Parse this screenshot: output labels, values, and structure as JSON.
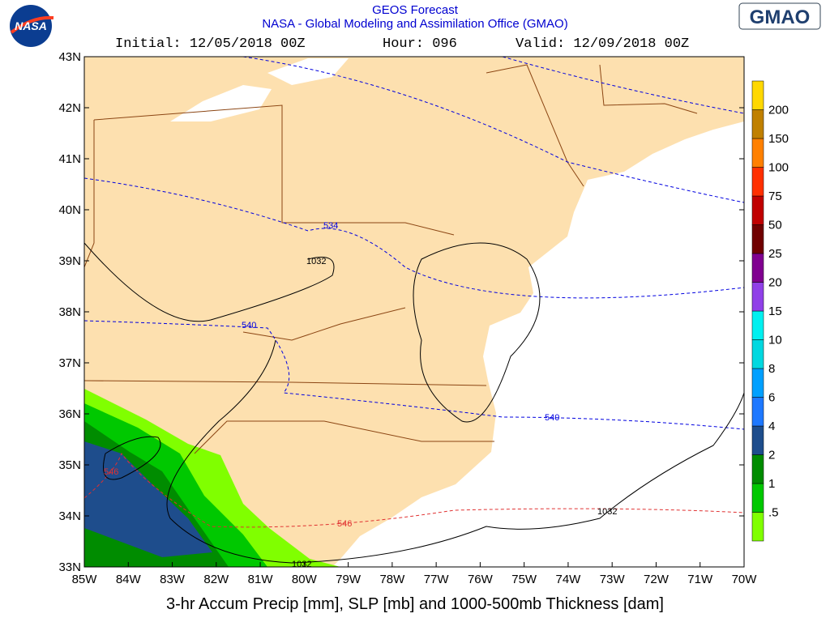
{
  "header": {
    "title": "GEOS Forecast",
    "subtitle": "NASA - Global Modeling and Assimilation Office (GMAO)",
    "initial": "Initial: 12/05/2018 00Z",
    "hour": "Hour: 096",
    "valid": "Valid: 12/09/2018 00Z"
  },
  "logos": {
    "nasa": "NASA",
    "gmao": "GMAO"
  },
  "map": {
    "lat_labels": [
      "43N",
      "42N",
      "41N",
      "40N",
      "39N",
      "38N",
      "37N",
      "36N",
      "35N",
      "34N",
      "33N"
    ],
    "lon_labels": [
      "85W",
      "84W",
      "83W",
      "82W",
      "81W",
      "80W",
      "79W",
      "78W",
      "77W",
      "76W",
      "75W",
      "74W",
      "73W",
      "72W",
      "71W",
      "70W"
    ],
    "contour_labels": [
      "534",
      "540",
      "540",
      "546",
      "546",
      "1032",
      "1032",
      "1032"
    ]
  },
  "colorbar": {
    "labels": [
      ".5",
      "1",
      "2",
      "4",
      "6",
      "8",
      "10",
      "15",
      "20",
      "25",
      "50",
      "75",
      "100",
      "150",
      "200"
    ]
  },
  "caption": "3-hr Accum Precip [mm], SLP [mb] and 1000-500mb Thickness [dam]"
}
